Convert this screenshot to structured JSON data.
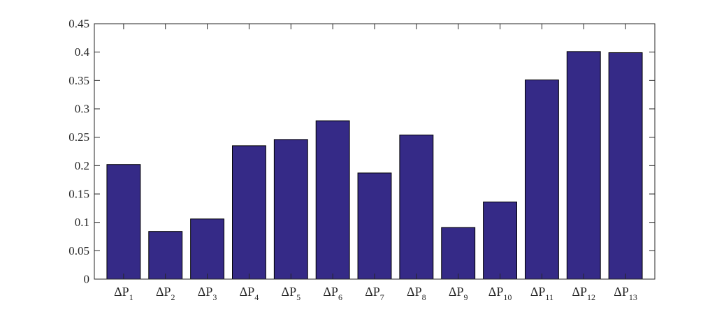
{
  "chart_data": {
    "type": "bar",
    "categories": [
      "ΔP1",
      "ΔP2",
      "ΔP3",
      "ΔP4",
      "ΔP5",
      "ΔP6",
      "ΔP7",
      "ΔP8",
      "ΔP9",
      "ΔP10",
      "ΔP11",
      "ΔP12",
      "ΔP13"
    ],
    "category_labels": [
      {
        "base": "ΔP",
        "sub": "1"
      },
      {
        "base": "ΔP",
        "sub": "2"
      },
      {
        "base": "ΔP",
        "sub": "3"
      },
      {
        "base": "ΔP",
        "sub": "4"
      },
      {
        "base": "ΔP",
        "sub": "5"
      },
      {
        "base": "ΔP",
        "sub": "6"
      },
      {
        "base": "ΔP",
        "sub": "7"
      },
      {
        "base": "ΔP",
        "sub": "8"
      },
      {
        "base": "ΔP",
        "sub": "9"
      },
      {
        "base": "ΔP",
        "sub": "10"
      },
      {
        "base": "ΔP",
        "sub": "11"
      },
      {
        "base": "ΔP",
        "sub": "12"
      },
      {
        "base": "ΔP",
        "sub": "13"
      }
    ],
    "values": [
      0.202,
      0.084,
      0.106,
      0.235,
      0.246,
      0.279,
      0.187,
      0.254,
      0.091,
      0.136,
      0.351,
      0.401,
      0.399
    ],
    "title": "",
    "xlabel": "",
    "ylabel": "",
    "ylim": [
      0,
      0.45
    ],
    "yticks": [
      0,
      0.05,
      0.1,
      0.15,
      0.2,
      0.25,
      0.3,
      0.35,
      0.4,
      0.45
    ],
    "ytick_labels": [
      "0",
      "0.05",
      "0.1",
      "0.15",
      "0.2",
      "0.25",
      "0.3",
      "0.35",
      "0.4",
      "0.45"
    ],
    "grid": false,
    "legend": "none",
    "bar_color": "#352a87",
    "edge_color": "#000000"
  }
}
